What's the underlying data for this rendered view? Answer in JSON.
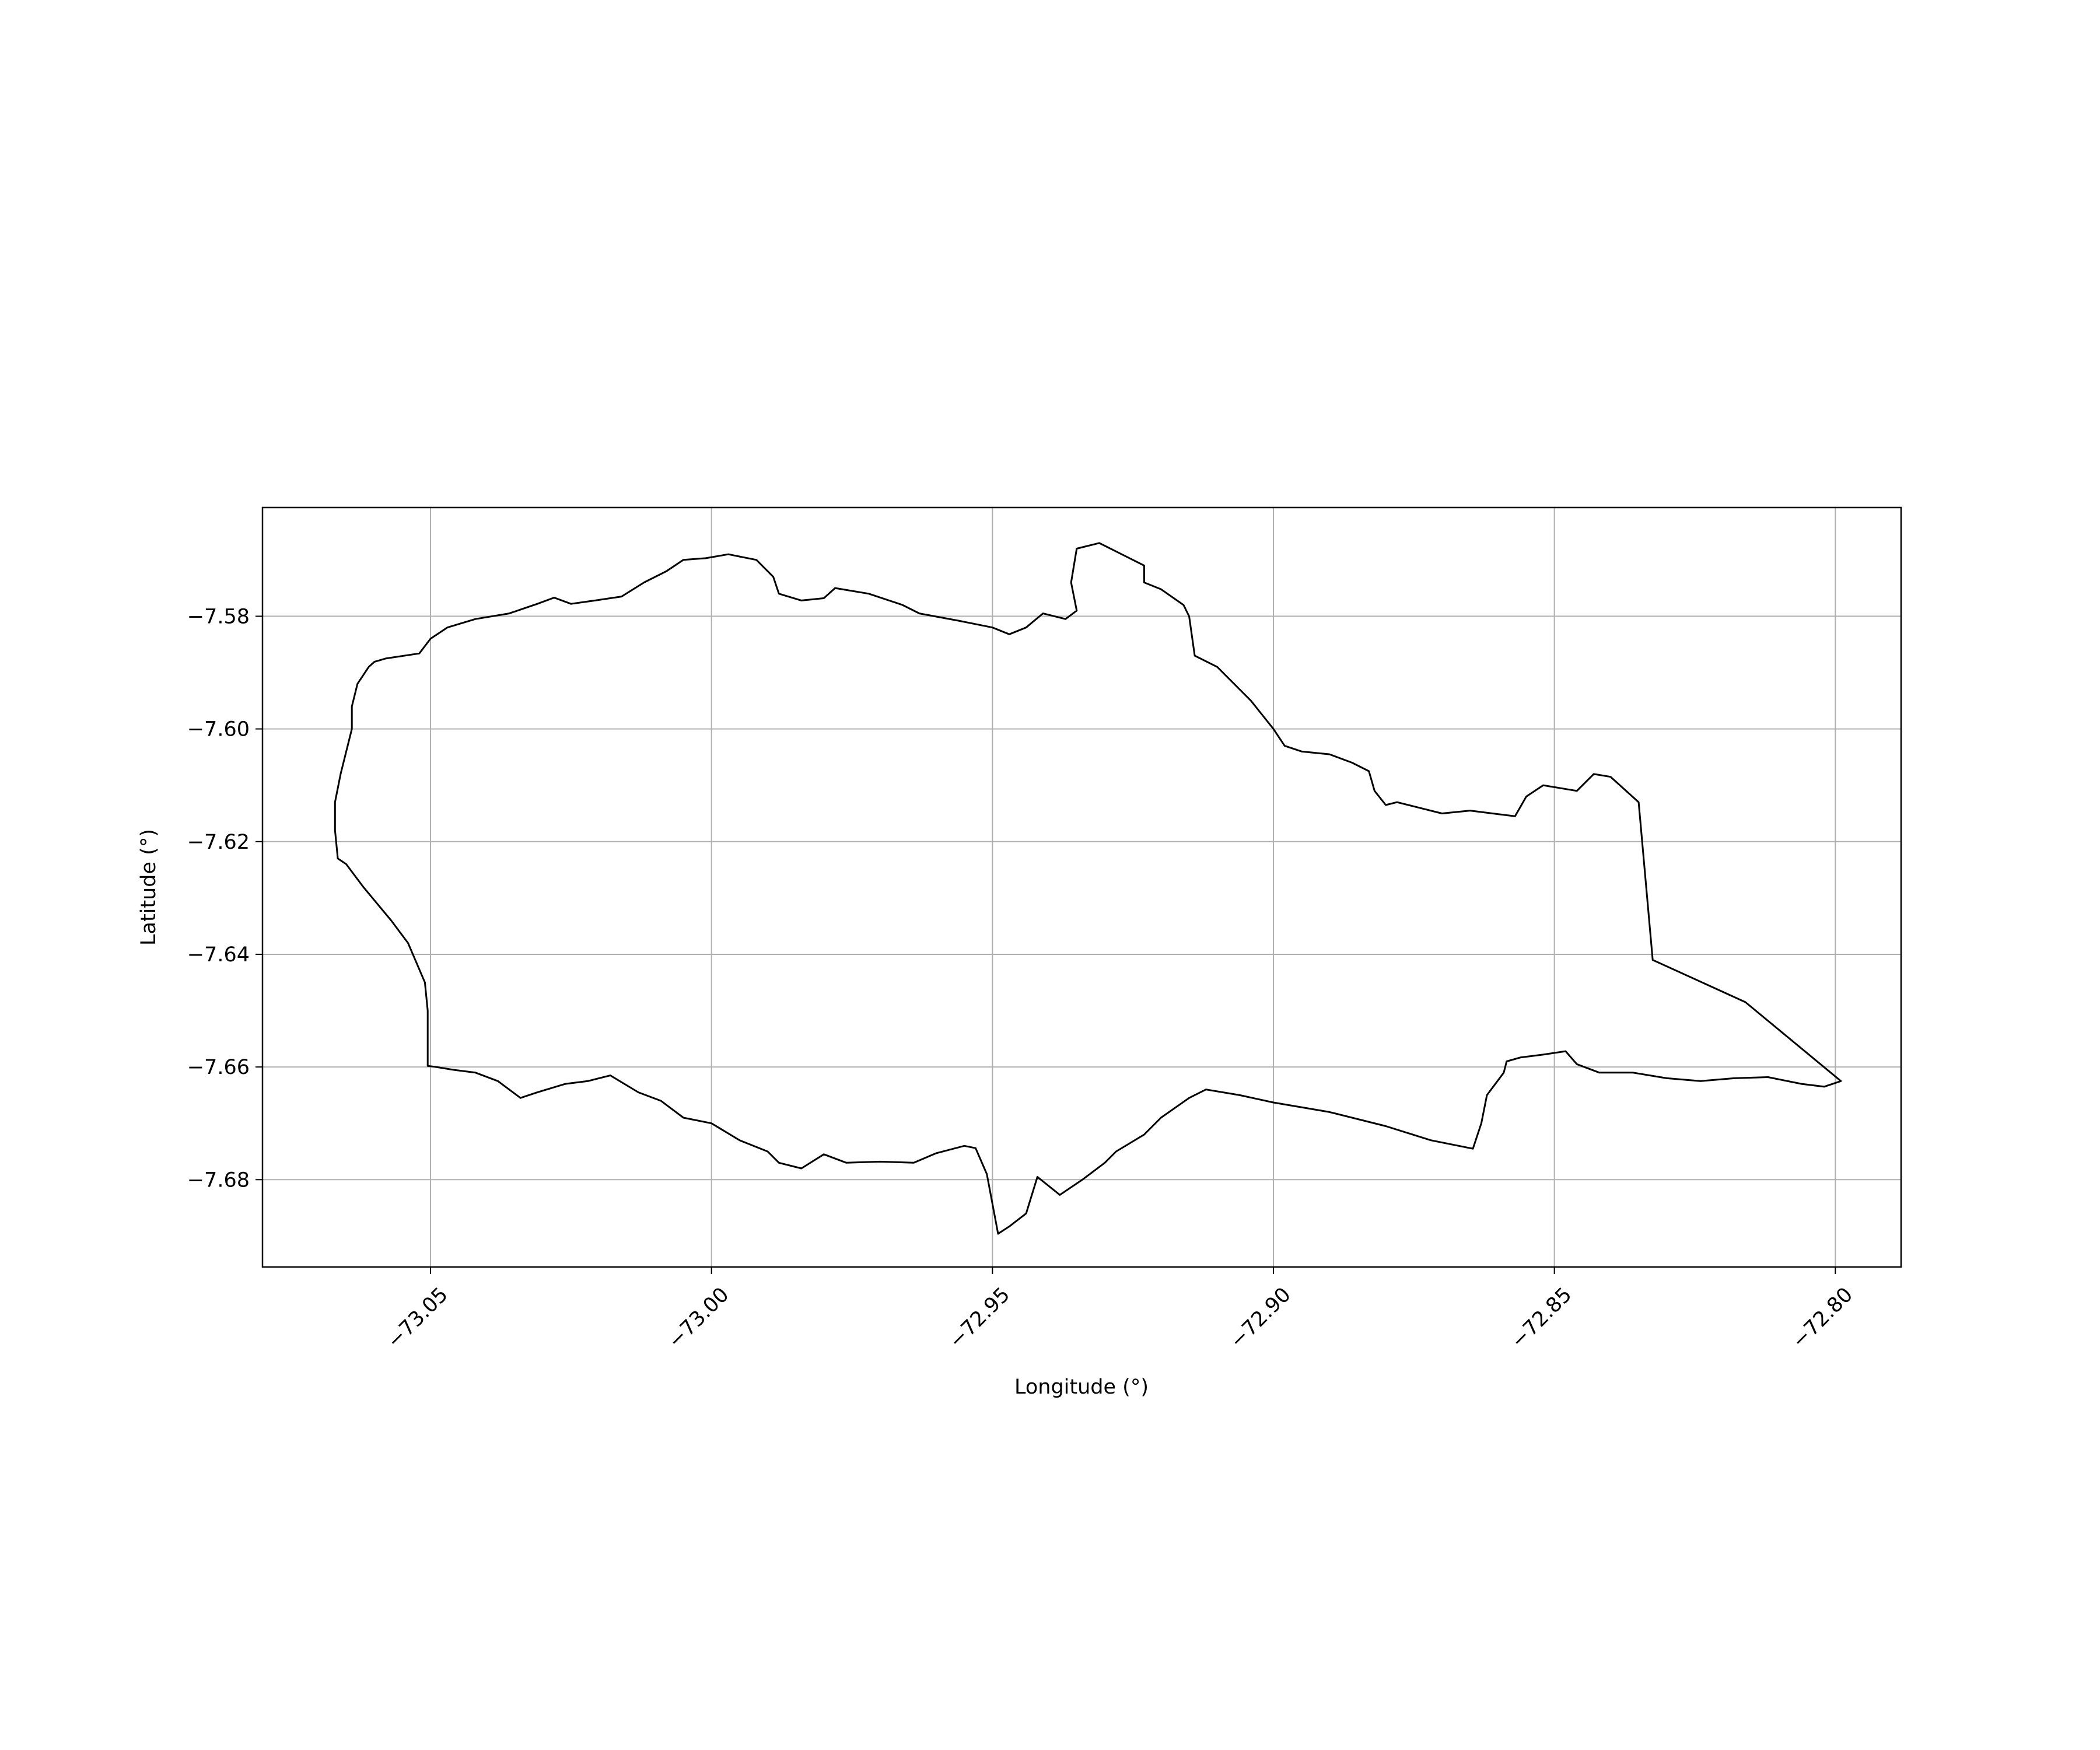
{
  "chart_data": {
    "type": "map",
    "title": "",
    "xlabel": "Longitude (°)",
    "ylabel": "Latitude (°)",
    "xlim": [
      -73.0799,
      -72.7883
    ],
    "ylim": [
      -7.6955,
      -7.5607
    ],
    "grid": true,
    "x_ticks": [
      {
        "value": -73.05,
        "label": "−73.05"
      },
      {
        "value": -73.0,
        "label": "−73.00"
      },
      {
        "value": -72.95,
        "label": "−72.95"
      },
      {
        "value": -72.9,
        "label": "−72.90"
      },
      {
        "value": -72.85,
        "label": "−72.85"
      },
      {
        "value": -72.8,
        "label": "−72.80"
      }
    ],
    "y_ticks": [
      {
        "value": -7.58,
        "label": "−7.58"
      },
      {
        "value": -7.6,
        "label": "−7.60"
      },
      {
        "value": -7.62,
        "label": "−7.62"
      },
      {
        "value": -7.64,
        "label": "−7.64"
      },
      {
        "value": -7.66,
        "label": "−7.66"
      },
      {
        "value": -7.68,
        "label": "−7.68"
      }
    ],
    "colors": {
      "boundary": "#000000",
      "grid": "#b0b0b0",
      "axes": "#000000"
    },
    "boundary_lon_lat": [
      [
        -73.06,
        -7.5881
      ],
      [
        -73.058,
        -7.5875
      ],
      [
        -73.052,
        -7.5866
      ],
      [
        -73.05,
        -7.584
      ],
      [
        -73.047,
        -7.582
      ],
      [
        -73.042,
        -7.5805
      ],
      [
        -73.036,
        -7.5795
      ],
      [
        -73.031,
        -7.5778
      ],
      [
        -73.028,
        -7.5767
      ],
      [
        -73.025,
        -7.5778
      ],
      [
        -73.02,
        -7.5771
      ],
      [
        -73.016,
        -7.5765
      ],
      [
        -73.012,
        -7.574
      ],
      [
        -73.008,
        -7.572
      ],
      [
        -73.005,
        -7.57
      ],
      [
        -73.001,
        -7.5697
      ],
      [
        -72.997,
        -7.569
      ],
      [
        -72.992,
        -7.57
      ],
      [
        -72.989,
        -7.573
      ],
      [
        -72.988,
        -7.576
      ],
      [
        -72.984,
        -7.5772
      ],
      [
        -72.98,
        -7.5768
      ],
      [
        -72.978,
        -7.575
      ],
      [
        -72.972,
        -7.576
      ],
      [
        -72.966,
        -7.578
      ],
      [
        -72.963,
        -7.5795
      ],
      [
        -72.956,
        -7.5808
      ],
      [
        -72.95,
        -7.582
      ],
      [
        -72.947,
        -7.5832
      ],
      [
        -72.944,
        -7.582
      ],
      [
        -72.941,
        -7.5795
      ],
      [
        -72.937,
        -7.5805
      ],
      [
        -72.935,
        -7.579
      ],
      [
        -72.936,
        -7.574
      ],
      [
        -72.935,
        -7.568
      ],
      [
        -72.931,
        -7.567
      ],
      [
        -72.927,
        -7.569
      ],
      [
        -72.923,
        -7.571
      ],
      [
        -72.923,
        -7.574
      ],
      [
        -72.92,
        -7.5752
      ],
      [
        -72.916,
        -7.578
      ],
      [
        -72.915,
        -7.58
      ],
      [
        -72.914,
        -7.587
      ],
      [
        -72.91,
        -7.589
      ],
      [
        -72.907,
        -7.592
      ],
      [
        -72.904,
        -7.595
      ],
      [
        -72.9,
        -7.6
      ],
      [
        -72.898,
        -7.603
      ],
      [
        -72.895,
        -7.604
      ],
      [
        -72.89,
        -7.6045
      ],
      [
        -72.886,
        -7.606
      ],
      [
        -72.883,
        -7.6075
      ],
      [
        -72.882,
        -7.611
      ],
      [
        -72.88,
        -7.6135
      ],
      [
        -72.878,
        -7.613
      ],
      [
        -72.874,
        -7.614
      ],
      [
        -72.87,
        -7.615
      ],
      [
        -72.865,
        -7.6145
      ],
      [
        -72.861,
        -7.615
      ],
      [
        -72.857,
        -7.6155
      ],
      [
        -72.855,
        -7.612
      ],
      [
        -72.852,
        -7.61
      ],
      [
        -72.846,
        -7.611
      ],
      [
        -72.843,
        -7.608
      ],
      [
        -72.84,
        -7.6085
      ],
      [
        -72.835,
        -7.613
      ],
      [
        -72.8325,
        -7.641
      ],
      [
        -72.816,
        -7.6485
      ],
      [
        -72.799,
        -7.6625
      ],
      [
        -72.802,
        -7.6635
      ],
      [
        -72.806,
        -7.663
      ],
      [
        -72.812,
        -7.6618
      ],
      [
        -72.818,
        -7.662
      ],
      [
        -72.824,
        -7.6625
      ],
      [
        -72.83,
        -7.662
      ],
      [
        -72.836,
        -7.661
      ],
      [
        -72.842,
        -7.661
      ],
      [
        -72.846,
        -7.6595
      ],
      [
        -72.848,
        -7.6572
      ],
      [
        -72.852,
        -7.6578
      ],
      [
        -72.856,
        -7.6583
      ],
      [
        -72.8585,
        -7.659
      ],
      [
        -72.859,
        -7.661
      ],
      [
        -72.862,
        -7.665
      ],
      [
        -72.863,
        -7.67
      ],
      [
        -72.8645,
        -7.6745
      ],
      [
        -72.872,
        -7.673
      ],
      [
        -72.88,
        -7.6705
      ],
      [
        -72.89,
        -7.668
      ],
      [
        -72.9,
        -7.6663
      ],
      [
        -72.906,
        -7.665
      ],
      [
        -72.912,
        -7.664
      ],
      [
        -72.915,
        -7.6655
      ],
      [
        -72.92,
        -7.669
      ],
      [
        -72.923,
        -7.672
      ],
      [
        -72.928,
        -7.675
      ],
      [
        -72.93,
        -7.677
      ],
      [
        -72.934,
        -7.68
      ],
      [
        -72.938,
        -7.6827
      ],
      [
        -72.942,
        -7.6795
      ],
      [
        -72.944,
        -7.686
      ],
      [
        -72.947,
        -7.6883
      ],
      [
        -72.949,
        -7.6896
      ],
      [
        -72.951,
        -7.679
      ],
      [
        -72.953,
        -7.6744
      ],
      [
        -72.955,
        -7.674
      ],
      [
        -72.96,
        -7.6753
      ],
      [
        -72.964,
        -7.677
      ],
      [
        -72.97,
        -7.6768
      ],
      [
        -72.976,
        -7.677
      ],
      [
        -72.98,
        -7.6755
      ],
      [
        -72.984,
        -7.678
      ],
      [
        -72.988,
        -7.677
      ],
      [
        -72.99,
        -7.675
      ],
      [
        -72.995,
        -7.673
      ],
      [
        -73.0,
        -7.67
      ],
      [
        -73.005,
        -7.669
      ],
      [
        -73.009,
        -7.666
      ],
      [
        -73.013,
        -7.6645
      ],
      [
        -73.018,
        -7.6615
      ],
      [
        -73.022,
        -7.6625
      ],
      [
        -73.026,
        -7.663
      ],
      [
        -73.031,
        -7.6645
      ],
      [
        -73.034,
        -7.6655
      ],
      [
        -73.038,
        -7.6625
      ],
      [
        -73.042,
        -7.661
      ],
      [
        -73.046,
        -7.6605
      ],
      [
        -73.049,
        -7.66
      ],
      [
        -73.0505,
        -7.6598
      ],
      [
        -73.0505,
        -7.65
      ],
      [
        -73.051,
        -7.645
      ],
      [
        -73.054,
        -7.638
      ],
      [
        -73.057,
        -7.634
      ],
      [
        -73.062,
        -7.628
      ],
      [
        -73.065,
        -7.624
      ],
      [
        -73.0665,
        -7.623
      ],
      [
        -73.067,
        -7.618
      ],
      [
        -73.067,
        -7.613
      ],
      [
        -73.066,
        -7.608
      ],
      [
        -73.064,
        -7.6
      ],
      [
        -73.064,
        -7.596
      ],
      [
        -73.063,
        -7.592
      ],
      [
        -73.061,
        -7.589
      ],
      [
        -73.06,
        -7.5881
      ]
    ]
  }
}
